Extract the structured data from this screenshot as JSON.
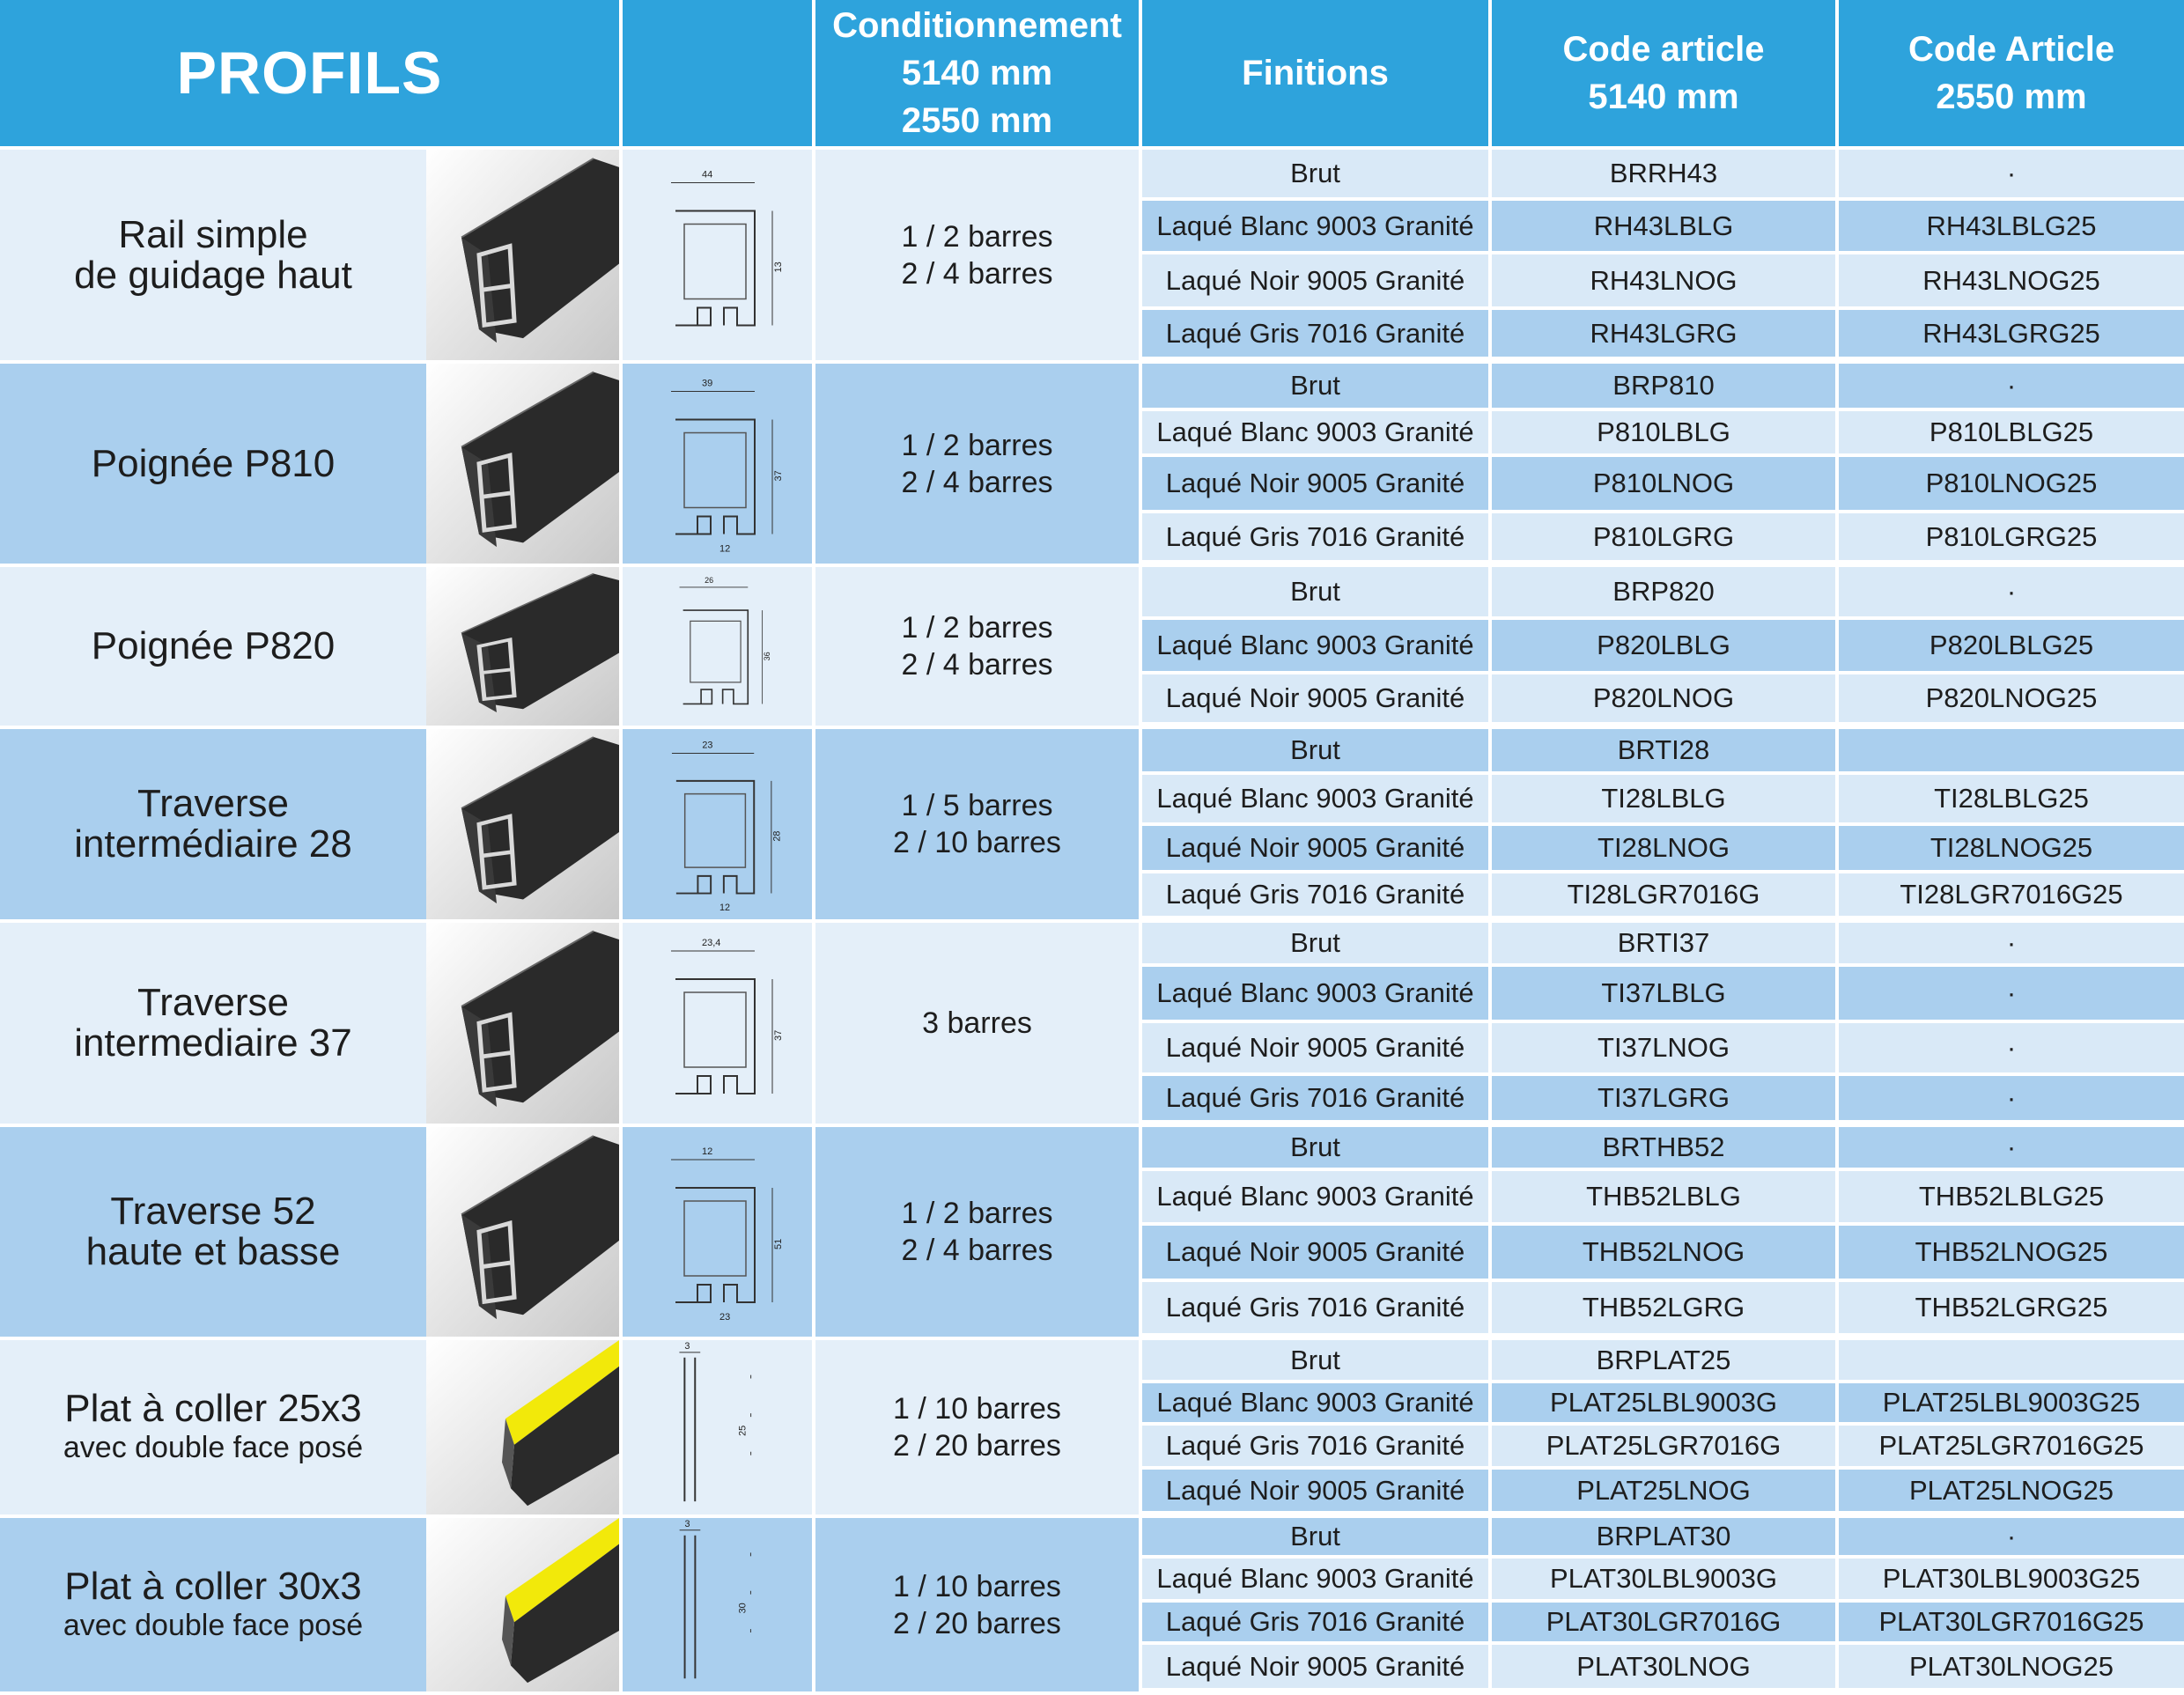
{
  "header": {
    "title": "PROFILS",
    "packaging": [
      "Conditionnement",
      "5140 mm",
      "2550 mm"
    ],
    "finishes": "Finitions",
    "code_5140": [
      "Code article",
      "5140 mm"
    ],
    "code_2550": [
      "Code Article",
      "2550 mm"
    ]
  },
  "colors": {
    "header": "#2ea3dc",
    "band_light": "#e4eff9",
    "band_dark": "#aacfee",
    "finish_light": "#d9e9f7",
    "finish_dark": "#aacfee",
    "profile_black": "#2a2a2a",
    "tape_yellow": "#f2e90a"
  },
  "products": [
    {
      "name": [
        "Rail simple",
        "de guidage haut"
      ],
      "sub": "",
      "packaging": [
        "1 / 2 barres",
        "2 / 4 barres"
      ],
      "photo_icon": "rail-profile-photo",
      "drawing_icon": "rail-section-drawing",
      "dims": [
        "44",
        "13"
      ],
      "finishes": [
        {
          "finish": "Brut",
          "code_5140": "BRRH43",
          "code_2550": "·"
        },
        {
          "finish": "Laqué Blanc 9003 Granité",
          "code_5140": "RH43LBLG",
          "code_2550": "RH43LBLG25"
        },
        {
          "finish": "Laqué Noir 9005 Granité",
          "code_5140": "RH43LNOG",
          "code_2550": "RH43LNOG25"
        },
        {
          "finish": "Laqué Gris 7016 Granité",
          "code_5140": "RH43LGRG",
          "code_2550": "RH43LGRG25"
        }
      ]
    },
    {
      "name": [
        "Poignée P810"
      ],
      "sub": "",
      "packaging": [
        "1 / 2 barres",
        "2 / 4 barres"
      ],
      "photo_icon": "handle-profile-photo",
      "drawing_icon": "handle-section-drawing",
      "dims": [
        "39",
        "37",
        "12"
      ],
      "finishes": [
        {
          "finish": "Brut",
          "code_5140": "BRP810",
          "code_2550": "·"
        },
        {
          "finish": "Laqué Blanc 9003 Granité",
          "code_5140": "P810LBLG",
          "code_2550": "P810LBLG25"
        },
        {
          "finish": "Laqué Noir 9005 Granité",
          "code_5140": "P810LNOG",
          "code_2550": "P810LNOG25"
        },
        {
          "finish": "Laqué Gris 7016 Granité",
          "code_5140": "P810LGRG",
          "code_2550": "P810LGRG25"
        }
      ]
    },
    {
      "name": [
        "Poignée P820"
      ],
      "sub": "",
      "packaging": [
        "1 / 2 barres",
        "2 / 4 barres"
      ],
      "photo_icon": "handle-profile-photo",
      "drawing_icon": "handle-section-drawing",
      "dims": [
        "26",
        "36"
      ],
      "finishes": [
        {
          "finish": "Brut",
          "code_5140": "BRP820",
          "code_2550": "·"
        },
        {
          "finish": "Laqué Blanc 9003 Granité",
          "code_5140": "P820LBLG",
          "code_2550": "P820LBLG25"
        },
        {
          "finish": "Laqué Noir 9005 Granité",
          "code_5140": "P820LNOG",
          "code_2550": "P820LNOG25"
        }
      ]
    },
    {
      "name": [
        "Traverse",
        "intermédiaire 28"
      ],
      "sub": "",
      "packaging": [
        "1 / 5 barres",
        "2 / 10 barres"
      ],
      "photo_icon": "crossbar-profile-photo",
      "drawing_icon": "crossbar-section-drawing",
      "dims": [
        "23",
        "28",
        "12"
      ],
      "finishes": [
        {
          "finish": "Brut",
          "code_5140": "BRTI28",
          "code_2550": ""
        },
        {
          "finish": "Laqué Blanc 9003 Granité",
          "code_5140": "TI28LBLG",
          "code_2550": "TI28LBLG25"
        },
        {
          "finish": "Laqué Noir 9005 Granité",
          "code_5140": "TI28LNOG",
          "code_2550": "TI28LNOG25"
        },
        {
          "finish": "Laqué Gris 7016 Granité",
          "code_5140": "TI28LGR7016G",
          "code_2550": "TI28LGR7016G25"
        }
      ]
    },
    {
      "name": [
        "Traverse",
        "intermediaire 37"
      ],
      "sub": "",
      "packaging": [
        "3 barres"
      ],
      "photo_icon": "crossbar-profile-photo",
      "drawing_icon": "crossbar-section-drawing",
      "dims": [
        "23,4",
        "37"
      ],
      "finishes": [
        {
          "finish": "Brut",
          "code_5140": "BRTI37",
          "code_2550": "·"
        },
        {
          "finish": "Laqué Blanc 9003 Granité",
          "code_5140": "TI37LBLG",
          "code_2550": "·"
        },
        {
          "finish": "Laqué Noir 9005 Granité",
          "code_5140": "TI37LNOG",
          "code_2550": "·"
        },
        {
          "finish": "Laqué Gris 7016 Granité",
          "code_5140": "TI37LGRG",
          "code_2550": "·"
        }
      ]
    },
    {
      "name": [
        "Traverse 52",
        "haute et basse"
      ],
      "sub": "",
      "packaging": [
        "1 / 2 barres",
        "2 / 4 barres"
      ],
      "photo_icon": "crossbar-profile-photo",
      "drawing_icon": "crossbar-section-drawing",
      "dims": [
        "12",
        "51",
        "23"
      ],
      "finishes": [
        {
          "finish": "Brut",
          "code_5140": "BRTHB52",
          "code_2550": "·"
        },
        {
          "finish": "Laqué Blanc 9003 Granité",
          "code_5140": "THB52LBLG",
          "code_2550": "THB52LBLG25"
        },
        {
          "finish": "Laqué Noir 9005 Granité",
          "code_5140": "THB52LNOG",
          "code_2550": "THB52LNOG25"
        },
        {
          "finish": "Laqué Gris 7016 Granité",
          "code_5140": "THB52LGRG",
          "code_2550": "THB52LGRG25"
        }
      ]
    },
    {
      "name": [
        "Plat à coller 25x3"
      ],
      "sub": "avec double face posé",
      "packaging": [
        "1 / 10 barres",
        "2 / 20 barres"
      ],
      "photo_icon": "flat-tape-profile-photo",
      "drawing_icon": "flat-section-drawing",
      "dims": [
        "3",
        "25"
      ],
      "finishes": [
        {
          "finish": "Brut",
          "code_5140": "BRPLAT25",
          "code_2550": ""
        },
        {
          "finish": "Laqué Blanc 9003 Granité",
          "code_5140": "PLAT25LBL9003G",
          "code_2550": "PLAT25LBL9003G25"
        },
        {
          "finish": "Laqué Gris 7016 Granité",
          "code_5140": "PLAT25LGR7016G",
          "code_2550": "PLAT25LGR7016G25"
        },
        {
          "finish": "Laqué Noir 9005 Granité",
          "code_5140": "PLAT25LNOG",
          "code_2550": "PLAT25LNOG25"
        }
      ]
    },
    {
      "name": [
        "Plat à coller 30x3"
      ],
      "sub": "avec double face posé",
      "packaging": [
        "1 / 10 barres",
        "2 / 20 barres"
      ],
      "photo_icon": "flat-tape-profile-photo",
      "drawing_icon": "flat-section-drawing",
      "dims": [
        "3",
        "30"
      ],
      "finishes": [
        {
          "finish": "Brut",
          "code_5140": "BRPLAT30",
          "code_2550": "·"
        },
        {
          "finish": "Laqué Blanc 9003 Granité",
          "code_5140": "PLAT30LBL9003G",
          "code_2550": "PLAT30LBL9003G25"
        },
        {
          "finish": "Laqué Gris 7016 Granité",
          "code_5140": "PLAT30LGR7016G",
          "code_2550": "PLAT30LGR7016G25"
        },
        {
          "finish": "Laqué Noir 9005 Granité",
          "code_5140": "PLAT30LNOG",
          "code_2550": "PLAT30LNOG25"
        }
      ]
    }
  ]
}
